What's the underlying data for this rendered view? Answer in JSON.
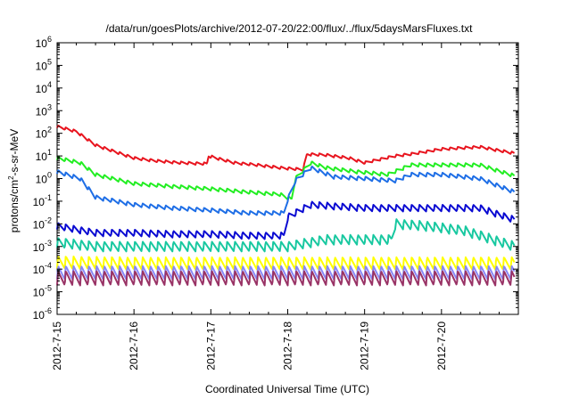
{
  "chart_data": {
    "type": "line",
    "title": "/data/run/goesPlots/archive/2012-07-20/22:00/flux/../flux/5daysMarsFluxes.txt",
    "xlabel": "Coordinated Universal Time (UTC)",
    "ylabel_parts": [
      "protons/cm",
      "2",
      "-s-sr-MeV"
    ],
    "yscale": "log",
    "ylim_exp": [
      -6,
      6
    ],
    "y_tick_labels": [
      {
        "exp": -6,
        "base": "10",
        "sup": "-6"
      },
      {
        "exp": -5,
        "base": "10",
        "sup": "-5"
      },
      {
        "exp": -4,
        "base": "10",
        "sup": "-4"
      },
      {
        "exp": -3,
        "base": "10",
        "sup": "-3"
      },
      {
        "exp": -2,
        "base": "10",
        "sup": "-2"
      },
      {
        "exp": -1,
        "base": "10",
        "sup": "-1"
      },
      {
        "exp": 0,
        "base": "10",
        "sup": "0"
      },
      {
        "exp": 1,
        "base": "10",
        "sup": "1"
      },
      {
        "exp": 2,
        "base": "10",
        "sup": "2"
      },
      {
        "exp": 3,
        "base": "10",
        "sup": "3"
      },
      {
        "exp": 4,
        "base": "10",
        "sup": "4"
      },
      {
        "exp": 5,
        "base": "10",
        "sup": "5"
      },
      {
        "exp": 6,
        "base": "10",
        "sup": "6"
      }
    ],
    "x_range_days": [
      "2012-7-15",
      "2012-7-21"
    ],
    "x_tick_labels": [
      "2012-7-15",
      "2012-7-16",
      "2012-7-17",
      "2012-7-18",
      "2012-7-19",
      "2012-7-20"
    ],
    "grid": false,
    "legend": "none",
    "series": [
      {
        "color": "#e8141e",
        "points": [
          [
            0.0,
            200
          ],
          [
            0.25,
            120
          ],
          [
            0.5,
            30
          ],
          [
            1.0,
            8
          ],
          [
            1.3,
            6
          ],
          [
            1.6,
            5
          ],
          [
            1.95,
            4.5
          ],
          [
            1.97,
            10
          ],
          [
            2.3,
            5
          ],
          [
            2.6,
            4
          ],
          [
            2.9,
            3
          ],
          [
            3.2,
            2.5
          ],
          [
            3.25,
            12
          ],
          [
            3.5,
            11
          ],
          [
            3.8,
            8
          ],
          [
            4.0,
            5
          ],
          [
            4.4,
            10
          ],
          [
            4.6,
            12
          ],
          [
            5.0,
            20
          ],
          [
            5.5,
            25
          ],
          [
            5.95,
            13
          ]
        ]
      },
      {
        "color": "#22ee22",
        "points": [
          [
            0.0,
            8
          ],
          [
            0.3,
            5
          ],
          [
            0.5,
            1.5
          ],
          [
            1.0,
            0.6
          ],
          [
            1.5,
            0.45
          ],
          [
            2.0,
            0.35
          ],
          [
            2.5,
            0.25
          ],
          [
            2.9,
            0.2
          ],
          [
            3.05,
            0.12
          ],
          [
            3.1,
            1.0
          ],
          [
            3.3,
            5
          ],
          [
            3.5,
            3
          ],
          [
            3.9,
            2
          ],
          [
            4.3,
            1.5
          ],
          [
            4.6,
            4
          ],
          [
            5.0,
            4
          ],
          [
            5.5,
            4
          ],
          [
            5.95,
            1.3
          ]
        ]
      },
      {
        "color": "#1e6ee6",
        "points": [
          [
            0.0,
            2
          ],
          [
            0.3,
            1.0
          ],
          [
            0.5,
            0.15
          ],
          [
            1.0,
            0.07
          ],
          [
            1.5,
            0.05
          ],
          [
            2.0,
            0.04
          ],
          [
            2.5,
            0.03
          ],
          [
            2.95,
            0.03
          ],
          [
            3.0,
            0.12
          ],
          [
            3.1,
            0.8
          ],
          [
            3.3,
            3
          ],
          [
            3.6,
            1.2
          ],
          [
            4.0,
            1.0
          ],
          [
            4.4,
            0.8
          ],
          [
            4.6,
            1.5
          ],
          [
            5.0,
            1.5
          ],
          [
            5.5,
            1.0
          ],
          [
            5.95,
            0.25
          ]
        ]
      },
      {
        "color": "#0a0ad2",
        "points": [
          [
            0.0,
            0.008
          ],
          [
            0.5,
            0.004
          ],
          [
            1.0,
            0.004
          ],
          [
            1.5,
            0.0035
          ],
          [
            2.0,
            0.0035
          ],
          [
            2.5,
            0.003
          ],
          [
            2.95,
            0.003
          ],
          [
            3.0,
            0.02
          ],
          [
            3.3,
            0.07
          ],
          [
            3.6,
            0.06
          ],
          [
            4.0,
            0.05
          ],
          [
            4.4,
            0.05
          ],
          [
            5.0,
            0.05
          ],
          [
            5.5,
            0.05
          ],
          [
            5.95,
            0.015
          ]
        ]
      },
      {
        "color": "#18c8a0",
        "points": [
          [
            0.0,
            0.0015
          ],
          [
            0.5,
            0.001
          ],
          [
            1.0,
            0.001
          ],
          [
            1.5,
            0.001
          ],
          [
            2.0,
            0.001
          ],
          [
            2.5,
            0.001
          ],
          [
            3.0,
            0.001
          ],
          [
            3.5,
            0.002
          ],
          [
            4.0,
            0.002
          ],
          [
            4.35,
            0.002
          ],
          [
            4.4,
            0.01
          ],
          [
            4.8,
            0.008
          ],
          [
            5.3,
            0.005
          ],
          [
            5.95,
            0.001
          ]
        ]
      },
      {
        "color": "#ffff00",
        "points": [
          [
            0.0,
            0.0002
          ],
          [
            1.0,
            0.00018
          ],
          [
            2.0,
            0.00018
          ],
          [
            3.0,
            0.00018
          ],
          [
            4.0,
            0.00018
          ],
          [
            5.0,
            0.00018
          ],
          [
            5.95,
            0.00018
          ]
        ]
      },
      {
        "color": "#8888f8",
        "points": [
          [
            0.0,
            7e-05
          ],
          [
            1.0,
            7e-05
          ],
          [
            2.0,
            7e-05
          ],
          [
            3.0,
            7e-05
          ],
          [
            4.0,
            7e-05
          ],
          [
            5.0,
            7e-05
          ],
          [
            5.95,
            7e-05
          ]
        ]
      },
      {
        "color": "#993366",
        "points": [
          [
            0.0,
            4e-05
          ],
          [
            1.0,
            4e-05
          ],
          [
            2.0,
            4e-05
          ],
          [
            3.0,
            4e-05
          ],
          [
            4.0,
            4e-05
          ],
          [
            5.0,
            4e-05
          ],
          [
            5.95,
            4e-05
          ]
        ]
      }
    ]
  }
}
